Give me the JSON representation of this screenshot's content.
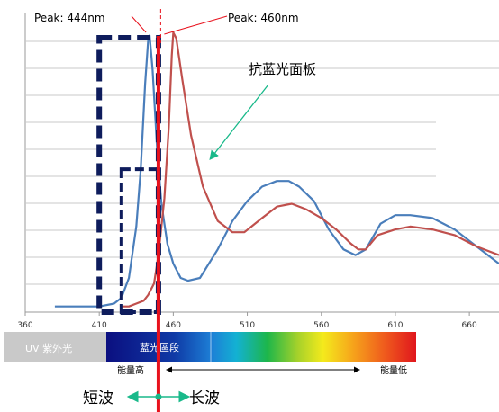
{
  "chart_data": {
    "type": "line",
    "title": "",
    "xlabel": "",
    "ylabel": "",
    "xlim": [
      360,
      680
    ],
    "x_ticks": [
      "360",
      "410",
      "460",
      "510",
      "560",
      "610",
      "660"
    ],
    "tick_values": [
      360,
      410,
      460,
      510,
      560,
      610,
      660
    ],
    "grid": "horizontal",
    "series": [
      {
        "color": "#4a7ebb",
        "points": [
          [
            380,
            0.02
          ],
          [
            400,
            0.02
          ],
          [
            410,
            0.02
          ],
          [
            420,
            0.03
          ],
          [
            425,
            0.05
          ],
          [
            430,
            0.12
          ],
          [
            435,
            0.3
          ],
          [
            438,
            0.5
          ],
          [
            441,
            0.8
          ],
          [
            443,
            0.95
          ],
          [
            444,
            0.97
          ],
          [
            446,
            0.85
          ],
          [
            449,
            0.58
          ],
          [
            452,
            0.38
          ],
          [
            456,
            0.24
          ],
          [
            460,
            0.17
          ],
          [
            465,
            0.12
          ],
          [
            470,
            0.11
          ],
          [
            478,
            0.12
          ],
          [
            490,
            0.22
          ],
          [
            500,
            0.32
          ],
          [
            510,
            0.39
          ],
          [
            520,
            0.44
          ],
          [
            530,
            0.46
          ],
          [
            538,
            0.46
          ],
          [
            545,
            0.44
          ],
          [
            555,
            0.39
          ],
          [
            565,
            0.29
          ],
          [
            575,
            0.22
          ],
          [
            583,
            0.2
          ],
          [
            590,
            0.22
          ],
          [
            600,
            0.31
          ],
          [
            610,
            0.34
          ],
          [
            620,
            0.34
          ],
          [
            635,
            0.33
          ],
          [
            650,
            0.29
          ],
          [
            665,
            0.23
          ],
          [
            680,
            0.17
          ]
        ]
      },
      {
        "color": "#c0504d",
        "points": [
          [
            425,
            0.02
          ],
          [
            430,
            0.02
          ],
          [
            435,
            0.03
          ],
          [
            440,
            0.04
          ],
          [
            443,
            0.06
          ],
          [
            447,
            0.1
          ],
          [
            450,
            0.2
          ],
          [
            454,
            0.4
          ],
          [
            457,
            0.65
          ],
          [
            459,
            0.9
          ],
          [
            460,
            0.98
          ],
          [
            462,
            0.96
          ],
          [
            466,
            0.82
          ],
          [
            472,
            0.62
          ],
          [
            480,
            0.44
          ],
          [
            490,
            0.32
          ],
          [
            500,
            0.28
          ],
          [
            508,
            0.28
          ],
          [
            520,
            0.33
          ],
          [
            530,
            0.37
          ],
          [
            540,
            0.38
          ],
          [
            550,
            0.36
          ],
          [
            560,
            0.33
          ],
          [
            570,
            0.29
          ],
          [
            580,
            0.24
          ],
          [
            585,
            0.22
          ],
          [
            590,
            0.22
          ],
          [
            598,
            0.27
          ],
          [
            610,
            0.29
          ],
          [
            620,
            0.3
          ],
          [
            635,
            0.29
          ],
          [
            650,
            0.27
          ],
          [
            665,
            0.23
          ],
          [
            680,
            0.2
          ]
        ]
      }
    ],
    "annotations": {
      "peak_blue": "Peak: 444nm",
      "peak_red": "Peak: 460nm",
      "panel_label": "抗蓝光面板",
      "peak_blue_x": 444,
      "peak_red_x": 460,
      "boundary_x": 450,
      "box_outer_x": [
        410,
        450
      ],
      "box_inner_x": [
        425,
        450
      ],
      "box_inner_top": 0.52
    },
    "spectrum_bar": {
      "uv_label": "UV 紫外光",
      "blue_label": "藍光區段",
      "energy_high": "能量高",
      "energy_low": "能量低",
      "short_wave": "短波",
      "long_wave": "长波"
    }
  },
  "colors": {
    "blue_line": "#4a7ebb",
    "red_line": "#c0504d",
    "box_border": "#0e1c5c",
    "boundary": "#e8111c",
    "annotation_arrow": "#19b98a",
    "grid": "#c8c8c8"
  }
}
